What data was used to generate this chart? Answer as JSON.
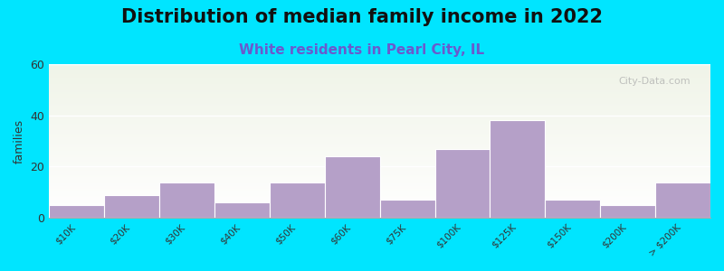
{
  "title": "Distribution of median family income in 2022",
  "subtitle": "White residents in Pearl City, IL",
  "ylabel": "families",
  "categories": [
    "$10K",
    "$20K",
    "$30K",
    "$40K",
    "$50K",
    "$60K",
    "$75K",
    "$100K",
    "$125K",
    "$150K",
    "$200K",
    "> $200K"
  ],
  "values": [
    5,
    9,
    14,
    6,
    14,
    24,
    7,
    27,
    38,
    7,
    5,
    14
  ],
  "bar_color": "#b5a0c8",
  "bar_edge_color": "#ffffff",
  "ylim": [
    0,
    60
  ],
  "yticks": [
    0,
    20,
    40,
    60
  ],
  "background_outer": "#00e5ff",
  "plot_bg_top": "#f0f4e8",
  "plot_bg_bottom": "#ffffff",
  "title_fontsize": 15,
  "subtitle_fontsize": 11,
  "subtitle_color": "#6a5acd",
  "watermark_text": "City-Data.com",
  "grid_color": "#ffffff",
  "tick_label_fontsize": 7.5
}
